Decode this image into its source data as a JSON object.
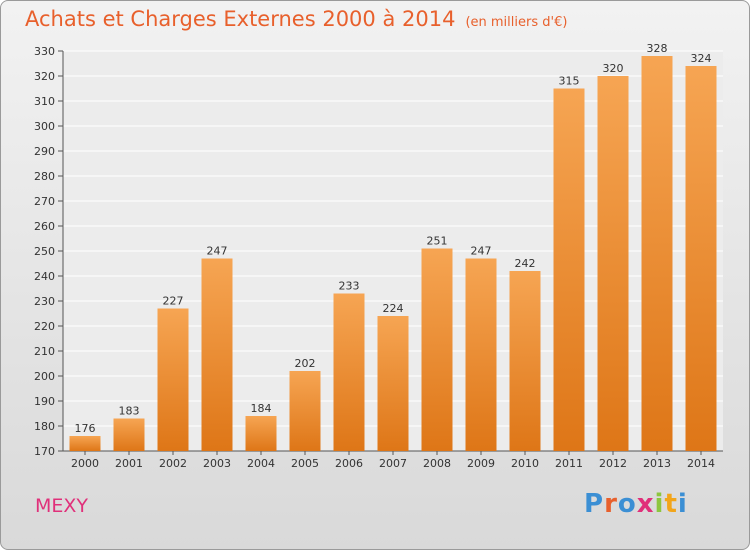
{
  "header": {
    "title": "Achats et Charges Externes 2000 à 2014",
    "unit": "(en milliers d'€)"
  },
  "footer": {
    "place": "MEXY",
    "logo": [
      "P",
      "r",
      "o",
      "x",
      "i",
      "t",
      "i"
    ]
  },
  "colors": {
    "bar_top": "#f6a553",
    "bar_bottom": "#de7617",
    "title": "#e8602c",
    "place": "#e0307a",
    "logo": [
      "#3b8fd4",
      "#e8602c",
      "#3b8fd4",
      "#e0307a",
      "#8dc63f",
      "#f2a51a",
      "#3b8fd4"
    ]
  },
  "chart_data": {
    "type": "bar",
    "title": "Achats et Charges Externes 2000 à 2014",
    "subtitle": "(en milliers d'€)",
    "categories": [
      "2000",
      "2001",
      "2002",
      "2003",
      "2004",
      "2005",
      "2006",
      "2007",
      "2008",
      "2009",
      "2010",
      "2011",
      "2012",
      "2013",
      "2014"
    ],
    "values": [
      176,
      183,
      227,
      247,
      184,
      202,
      233,
      224,
      251,
      247,
      242,
      315,
      320,
      328,
      324
    ],
    "ylim": [
      170,
      330
    ],
    "yticks": [
      "170",
      "180",
      "190",
      "200",
      "210",
      "220",
      "230",
      "240",
      "250",
      "260",
      "270",
      "280",
      "290",
      "300",
      "310",
      "320",
      "330"
    ],
    "grid": true,
    "legend": "none"
  }
}
